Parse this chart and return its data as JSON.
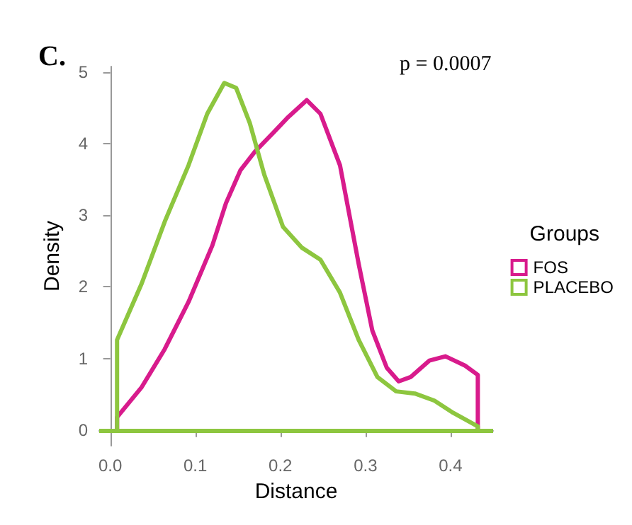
{
  "chart_data": {
    "type": "line",
    "title": "C.",
    "xlabel": "Distance",
    "ylabel": "Density",
    "legend_title": "Groups",
    "annotations": [
      "p = 0.0007"
    ],
    "xlim": [
      -0.013,
      0.45
    ],
    "xticks": [
      {
        "value": 0,
        "label": "0.0"
      },
      {
        "value": 0.1,
        "label": "0.1"
      },
      {
        "value": 0.2,
        "label": "0.2"
      },
      {
        "value": 0.3,
        "label": "0.3"
      },
      {
        "value": 0.4,
        "label": "0.4"
      }
    ],
    "ylim": [
      -0.22,
      5.08
    ],
    "yticks": [
      0,
      1,
      2,
      3,
      4,
      5
    ],
    "ref_lines": [
      {
        "axis": "y",
        "value": 0,
        "color": "#8dc63f",
        "line_style": "solid"
      }
    ],
    "grid": false,
    "legend": "right",
    "marker": "none",
    "line_style": "solid",
    "series": [
      {
        "name": "FOS",
        "color": "#d81b8c",
        "x": [
          0.008,
          0.008,
          0.037,
          0.064,
          0.092,
          0.12,
          0.136,
          0.153,
          0.17,
          0.192,
          0.208,
          0.231,
          0.247,
          0.27,
          0.292,
          0.308,
          0.325,
          0.339,
          0.353,
          0.375,
          0.394,
          0.417,
          0.432,
          0.432
        ],
        "values": [
          0,
          0.18,
          0.6,
          1.13,
          1.79,
          2.58,
          3.17,
          3.63,
          3.89,
          4.16,
          4.36,
          4.61,
          4.42,
          3.7,
          2.32,
          1.39,
          0.87,
          0.68,
          0.74,
          0.97,
          1.03,
          0.9,
          0.77,
          0
        ]
      },
      {
        "name": "PLACEBO",
        "color": "#8dc63f",
        "x": [
          0.008,
          0.008,
          0.037,
          0.064,
          0.092,
          0.114,
          0.134,
          0.148,
          0.164,
          0.181,
          0.203,
          0.225,
          0.247,
          0.27,
          0.292,
          0.314,
          0.336,
          0.358,
          0.381,
          0.403,
          0.432,
          0.432
        ],
        "values": [
          0,
          1.26,
          2.05,
          2.91,
          3.7,
          4.42,
          4.85,
          4.78,
          4.29,
          3.57,
          2.84,
          2.55,
          2.38,
          1.92,
          1.26,
          0.74,
          0.54,
          0.51,
          0.41,
          0.24,
          0.05,
          0
        ]
      }
    ]
  }
}
